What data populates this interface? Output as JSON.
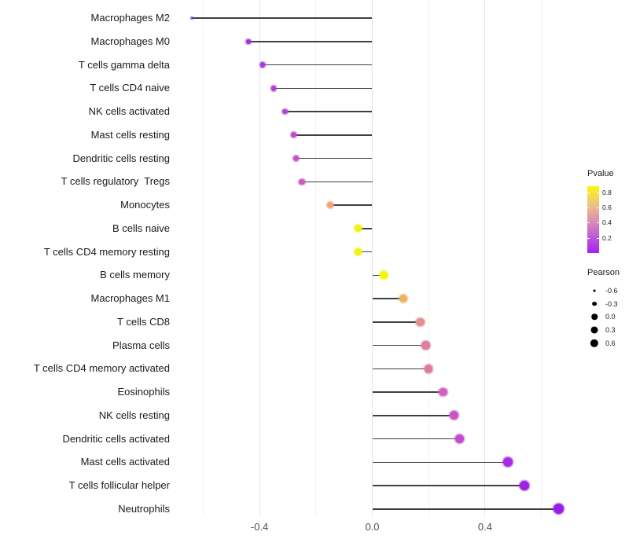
{
  "chart_data": {
    "type": "scatter",
    "variant": "horizontal-lollipop",
    "title": "",
    "xlabel": "",
    "ylabel": "",
    "x_tick_labels": [
      "-0.4",
      "0.0",
      "0.4"
    ],
    "x_tick_values": [
      -0.4,
      0.0,
      0.4
    ],
    "x_minor_tick_values": [
      -0.6,
      -0.2,
      0.2,
      0.6
    ],
    "xlim": [
      -0.69,
      0.72
    ],
    "grid": "vertical gridlines, white panel background",
    "stem_anchor": 0.0,
    "points": [
      {
        "label": "Macrophages M2",
        "pearson": -0.64,
        "color": "#7D2BE2"
      },
      {
        "label": "Macrophages M0",
        "pearson": -0.44,
        "color": "#A133DB"
      },
      {
        "label": "T cells gamma delta",
        "pearson": -0.39,
        "color": "#A83BD7"
      },
      {
        "label": "T cells CD4 naive",
        "pearson": -0.35,
        "color": "#AE41D3"
      },
      {
        "label": "NK cells activated",
        "pearson": -0.31,
        "color": "#B547CE"
      },
      {
        "label": "Mast cells resting",
        "pearson": -0.28,
        "color": "#BC4ECA"
      },
      {
        "label": "Dendritic cells resting",
        "pearson": -0.27,
        "color": "#C254C6"
      },
      {
        "label": "T cells regulatory  Tregs",
        "pearson": -0.25,
        "color": "#C95DC2"
      },
      {
        "label": "Monocytes",
        "pearson": -0.15,
        "color": "#EBA77C"
      },
      {
        "label": "B cells naive",
        "pearson": -0.05,
        "color": "#F2F20D"
      },
      {
        "label": "T cells CD4 memory resting",
        "pearson": -0.05,
        "color": "#F2F20D"
      },
      {
        "label": "B cells memory",
        "pearson": 0.04,
        "color": "#F5F505"
      },
      {
        "label": "Macrophages M1",
        "pearson": 0.11,
        "color": "#EDB164"
      },
      {
        "label": "T cells CD8",
        "pearson": 0.17,
        "color": "#E18E8E"
      },
      {
        "label": "Plasma cells",
        "pearson": 0.19,
        "color": "#DC809B"
      },
      {
        "label": "T cells CD4 memory activated",
        "pearson": 0.2,
        "color": "#DB7C9E"
      },
      {
        "label": "Eosinophils",
        "pearson": 0.25,
        "color": "#D263BC"
      },
      {
        "label": "NK cells resting",
        "pearson": 0.29,
        "color": "#CB55C6"
      },
      {
        "label": "Dendritic cells activated",
        "pearson": 0.31,
        "color": "#C24AD2"
      },
      {
        "label": "Mast cells activated",
        "pearson": 0.48,
        "color": "#A92BE3"
      },
      {
        "label": "T cells follicular helper",
        "pearson": 0.54,
        "color": "#9C22E6"
      },
      {
        "label": "Neutrophils",
        "pearson": 0.66,
        "color": "#991EE8"
      }
    ],
    "legend": {
      "pvalue": {
        "title": "Pvalue",
        "tick_labels": [
          "0.8",
          "0.6",
          "0.4",
          "0.2"
        ],
        "tick_values": [
          0.8,
          0.6,
          0.4,
          0.2
        ],
        "bar_range": [
          0.0,
          0.88
        ],
        "gradient_bottom_to_top": [
          "#A81FF0",
          "#C05BD8",
          "#DC93B0",
          "#EFC878",
          "#F8F70C"
        ]
      },
      "pearson": {
        "title": "Pearson",
        "entries": [
          {
            "label": "-0.6",
            "value": -0.6
          },
          {
            "label": "-0.3",
            "value": -0.3
          },
          {
            "label": "0.0",
            "value": 0.0
          },
          {
            "label": "0.3",
            "value": 0.3
          },
          {
            "label": "0.6",
            "value": 0.6
          }
        ],
        "dot_color": "#000000"
      }
    }
  }
}
